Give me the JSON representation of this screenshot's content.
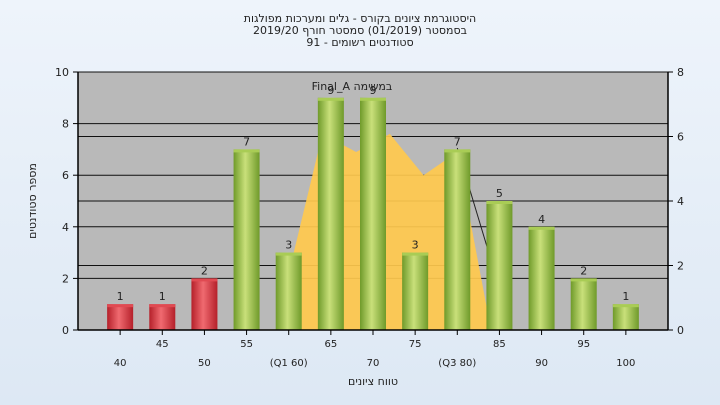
{
  "chart_data": {
    "type": "bar",
    "title_lines": [
      "היסטוגרמת ציונים בקורס - גלים ומערכות מפולגות",
      "בסמסטר  (01/2019)  סמסטר חורף 2019/20",
      "סטודנטים רשומים - 91"
    ],
    "categories": [
      "40",
      "45",
      "50",
      "55",
      "(Q1 60)",
      "65",
      "70",
      "75",
      "(Q3 80)",
      "85",
      "90",
      "95",
      "100"
    ],
    "values": [
      1,
      1,
      2,
      7,
      3,
      9,
      9,
      3,
      7,
      5,
      4,
      2,
      1
    ],
    "bar_colors": [
      "#d42b36",
      "#d42b36",
      "#d42b36",
      "#8fba3c",
      "#8fba3c",
      "#8fba3c",
      "#8fba3c",
      "#8fba3c",
      "#8fba3c",
      "#8fba3c",
      "#8fba3c",
      "#8fba3c",
      "#8fba3c"
    ],
    "area_series": {
      "x_from": "(Q1 60)",
      "x_to": "(Q3 80)",
      "values": [
        2.2,
        7.6,
        6.9,
        7.6,
        6,
        6.9
      ],
      "color": "#ffc94d"
    },
    "annotation": "Final_A במשימה",
    "xlabel": "טווח ציונים",
    "ylabel": "מספר סטודנטים",
    "ylim": [
      0,
      10
    ],
    "y_ticks": [
      0,
      2,
      4,
      6,
      8,
      10
    ],
    "y2lim": [
      0,
      8
    ],
    "y2_ticks": [
      0,
      2,
      4,
      6,
      8
    ],
    "grid": true,
    "plot_background": "#b9b9b9"
  }
}
